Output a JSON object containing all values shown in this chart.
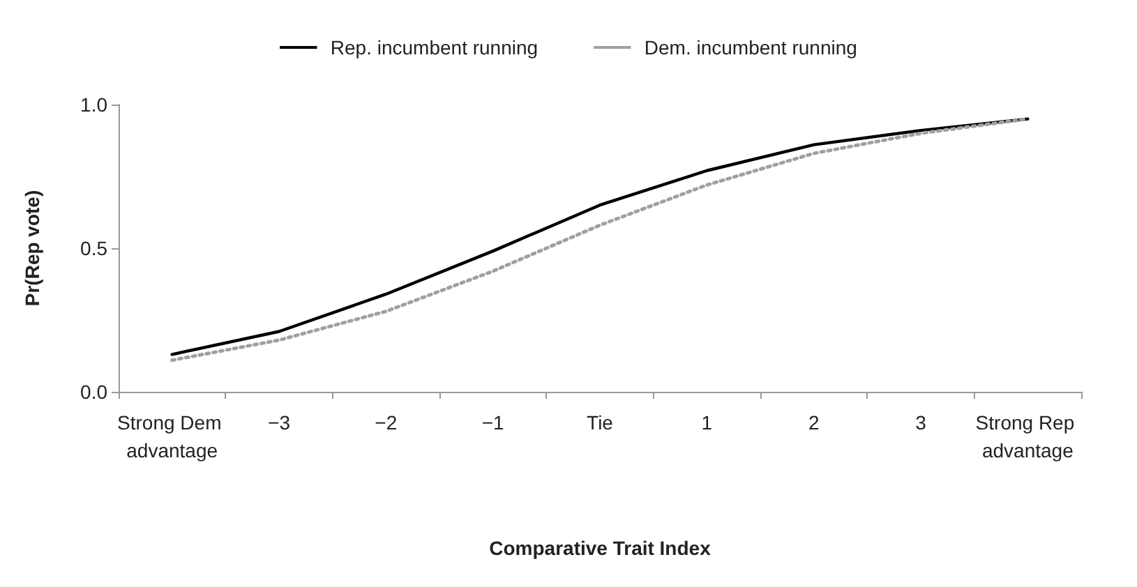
{
  "chart_data": {
    "type": "line",
    "xlabel": "Comparative Trait Index",
    "ylabel": "Pr(Rep vote)",
    "categories": [
      "Strong Dem advantage",
      "−3",
      "−2",
      "−1",
      "Tie",
      "1",
      "2",
      "3",
      "Strong Rep advantage"
    ],
    "series": [
      {
        "name": "Rep. incumbent running",
        "color": "#000000",
        "line_style": "solid",
        "values": [
          0.13,
          0.21,
          0.34,
          0.49,
          0.65,
          0.77,
          0.86,
          0.91,
          0.95
        ]
      },
      {
        "name": "Dem. incumbent running",
        "color": "#a0a0a0",
        "line_style": "dotted",
        "values": [
          0.11,
          0.18,
          0.28,
          0.42,
          0.58,
          0.72,
          0.83,
          0.9,
          0.95
        ]
      }
    ],
    "ylim": [
      0,
      1
    ],
    "yticks": [
      {
        "value": 0,
        "label": "0.0"
      },
      {
        "value": 0.5,
        "label": "0.5"
      },
      {
        "value": 1,
        "label": "1.0"
      }
    ],
    "grid": false,
    "legend": "top",
    "marker": "none"
  }
}
